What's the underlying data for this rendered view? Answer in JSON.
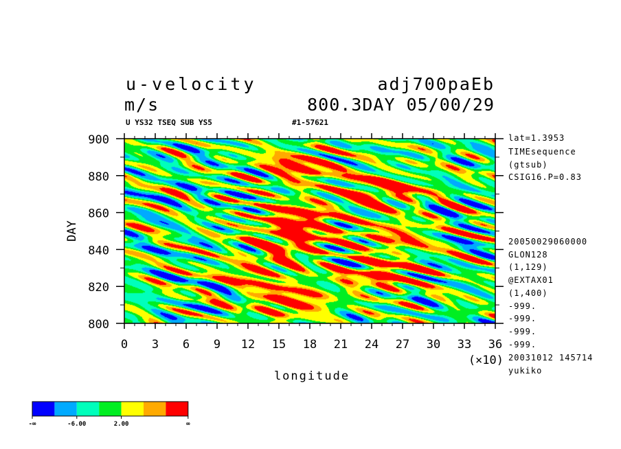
{
  "header": {
    "title": "u-velocity",
    "dataset": "adj700paEb",
    "units": "m/s",
    "time_label": "800.3DAY 05/00/29",
    "descriptor_left": "U YS32 TSEQ SUB YS5",
    "descriptor_right": "#1-57621"
  },
  "side_info": [
    "lat=1.3953",
    "TIMEsequence",
    "(gtsub)",
    "CSIG16.P=0.83"
  ],
  "side_info_lower": [
    "20050029060000",
    "GLON128",
    "(1,129)",
    "@EXTAX01",
    "(1,400)",
    "-999.",
    "-999.",
    "-999.",
    "-999.",
    "20031012 145714",
    "yukiko"
  ],
  "chart_data": {
    "type": "heatmap",
    "xlabel": "longitude",
    "ylabel": "DAY",
    "x_scale_note": "(×10)",
    "xlim": [
      0,
      36
    ],
    "ylim": [
      800,
      900
    ],
    "x_ticks": [
      "0",
      "3",
      "6",
      "9",
      "12",
      "15",
      "18",
      "21",
      "24",
      "27",
      "30",
      "33",
      "36"
    ],
    "y_ticks": [
      "800",
      "820",
      "840",
      "860",
      "880",
      "900"
    ],
    "colorbar": {
      "colors": [
        "#0000ff",
        "#00aaff",
        "#00ffbb",
        "#00ee22",
        "#ffff00",
        "#ffaa00",
        "#ff0000"
      ],
      "labels": [
        "-∞",
        "-6.00",
        "2.00",
        "∞"
      ]
    },
    "hot_regions": [
      {
        "lon": 16,
        "day": 812,
        "strength": "high"
      },
      {
        "lon": 16,
        "day": 845,
        "strength": "high"
      },
      {
        "lon": 17,
        "day": 858,
        "strength": "high"
      },
      {
        "lon": 17,
        "day": 885,
        "strength": "high"
      },
      {
        "lon": 25,
        "day": 827,
        "strength": "high"
      },
      {
        "lon": 26,
        "day": 847,
        "strength": "medium"
      },
      {
        "lon": 25,
        "day": 872,
        "strength": "high"
      },
      {
        "lon": 13,
        "day": 828,
        "strength": "medium"
      }
    ]
  }
}
